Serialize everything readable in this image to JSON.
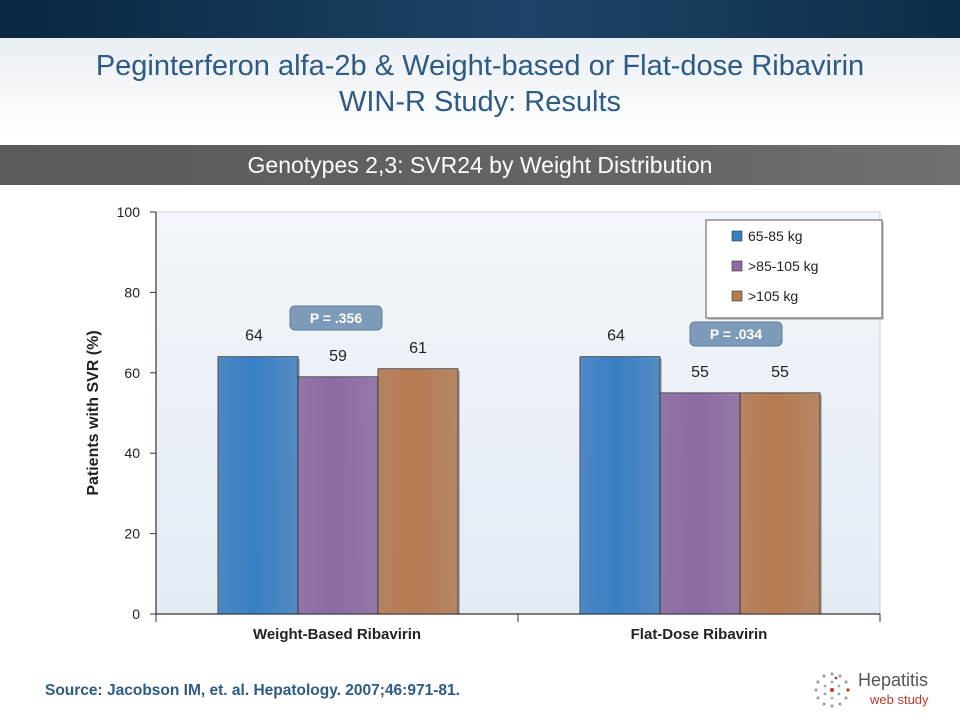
{
  "header": {
    "title_line1": "Peginterferon alfa-2b & Weight-based or Flat-dose Ribavirin",
    "title_line2": "WIN-R Study: Results",
    "subtitle": "Genotypes 2,3: SVR24 by Weight Distribution"
  },
  "chart_data": {
    "type": "bar",
    "categories": [
      "Weight-Based Ribavirin",
      "Flat-Dose Ribavirin"
    ],
    "series": [
      {
        "name": "65-85 kg",
        "values": [
          64,
          64
        ],
        "color": "#3a7fc4"
      },
      {
        "name": ">85-105 kg",
        "values": [
          59,
          55
        ],
        "color": "#8c6aa3"
      },
      {
        "name": ">105 kg",
        "values": [
          61,
          55
        ],
        "color": "#b57a50"
      }
    ],
    "ylabel": "Patients with SVR (%)",
    "ylim": [
      0,
      100
    ],
    "yticks": [
      0,
      20,
      40,
      60,
      80,
      100
    ],
    "legend_position": "top-right",
    "annotations": [
      "P = .356",
      "P = .034"
    ],
    "plot_background": "#e4ebf3"
  },
  "footer": {
    "source": "Source: Jacobson IM, et. al. Hepatology. 2007;46:971-81.",
    "brand_name": "Hepatitis",
    "brand_sub": "web study"
  }
}
